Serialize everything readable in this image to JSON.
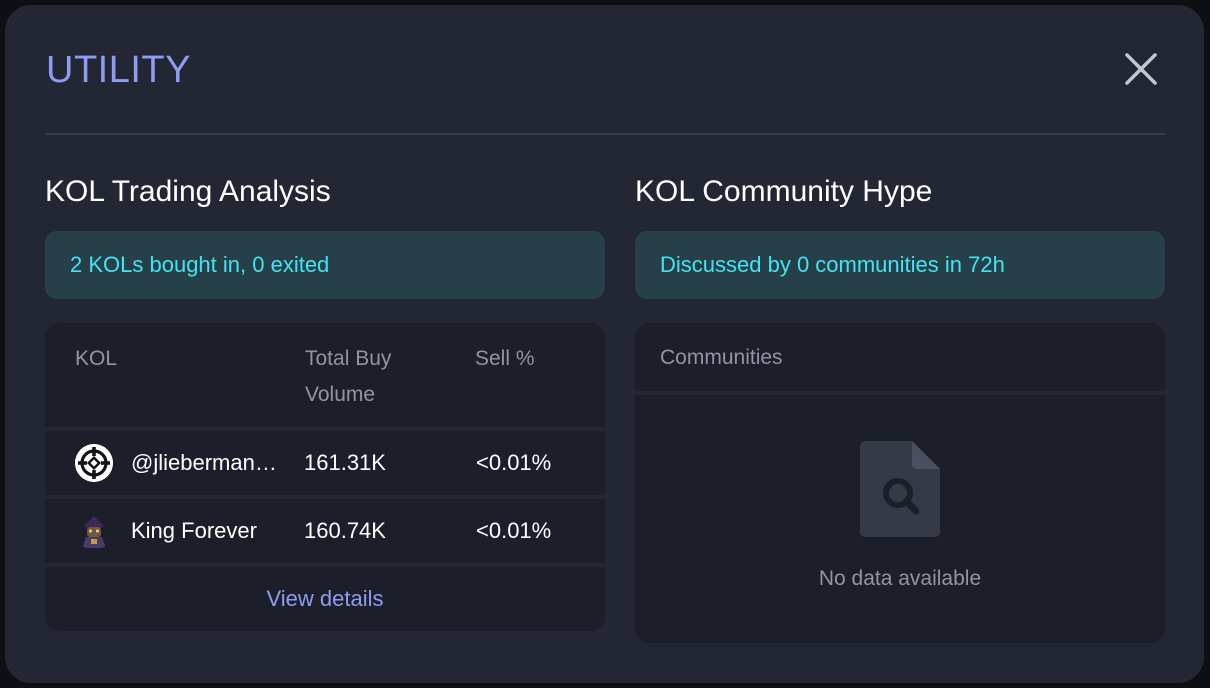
{
  "modal": {
    "title": "UTILITY",
    "close_icon": "close-icon"
  },
  "kol_trading": {
    "title": "KOL Trading Analysis",
    "summary": "2 KOLs bought in, 0 exited",
    "columns": {
      "kol": "KOL",
      "total_buy_volume": "Total Buy Volume",
      "sell_pct": "Sell %"
    },
    "rows": [
      {
        "name": "@jlieberman…",
        "avatar": "circular-logo-avatar",
        "volume": "161.31K",
        "sell": "<0.01%"
      },
      {
        "name": "King Forever",
        "avatar": "character-avatar",
        "volume": "160.74K",
        "sell": "<0.01%"
      }
    ],
    "view_details_label": "View details"
  },
  "community_hype": {
    "title": "KOL Community Hype",
    "summary": "Discussed by 0 communities in 72h",
    "column": "Communities",
    "empty_icon": "document-search-icon",
    "empty_text": "No data available"
  },
  "colors": {
    "accent": "#8e9cf3",
    "summary_text": "#41e4f0",
    "summary_bg": "#26404a",
    "modal_bg": "#232733",
    "panel_bg": "#1c1f29"
  }
}
